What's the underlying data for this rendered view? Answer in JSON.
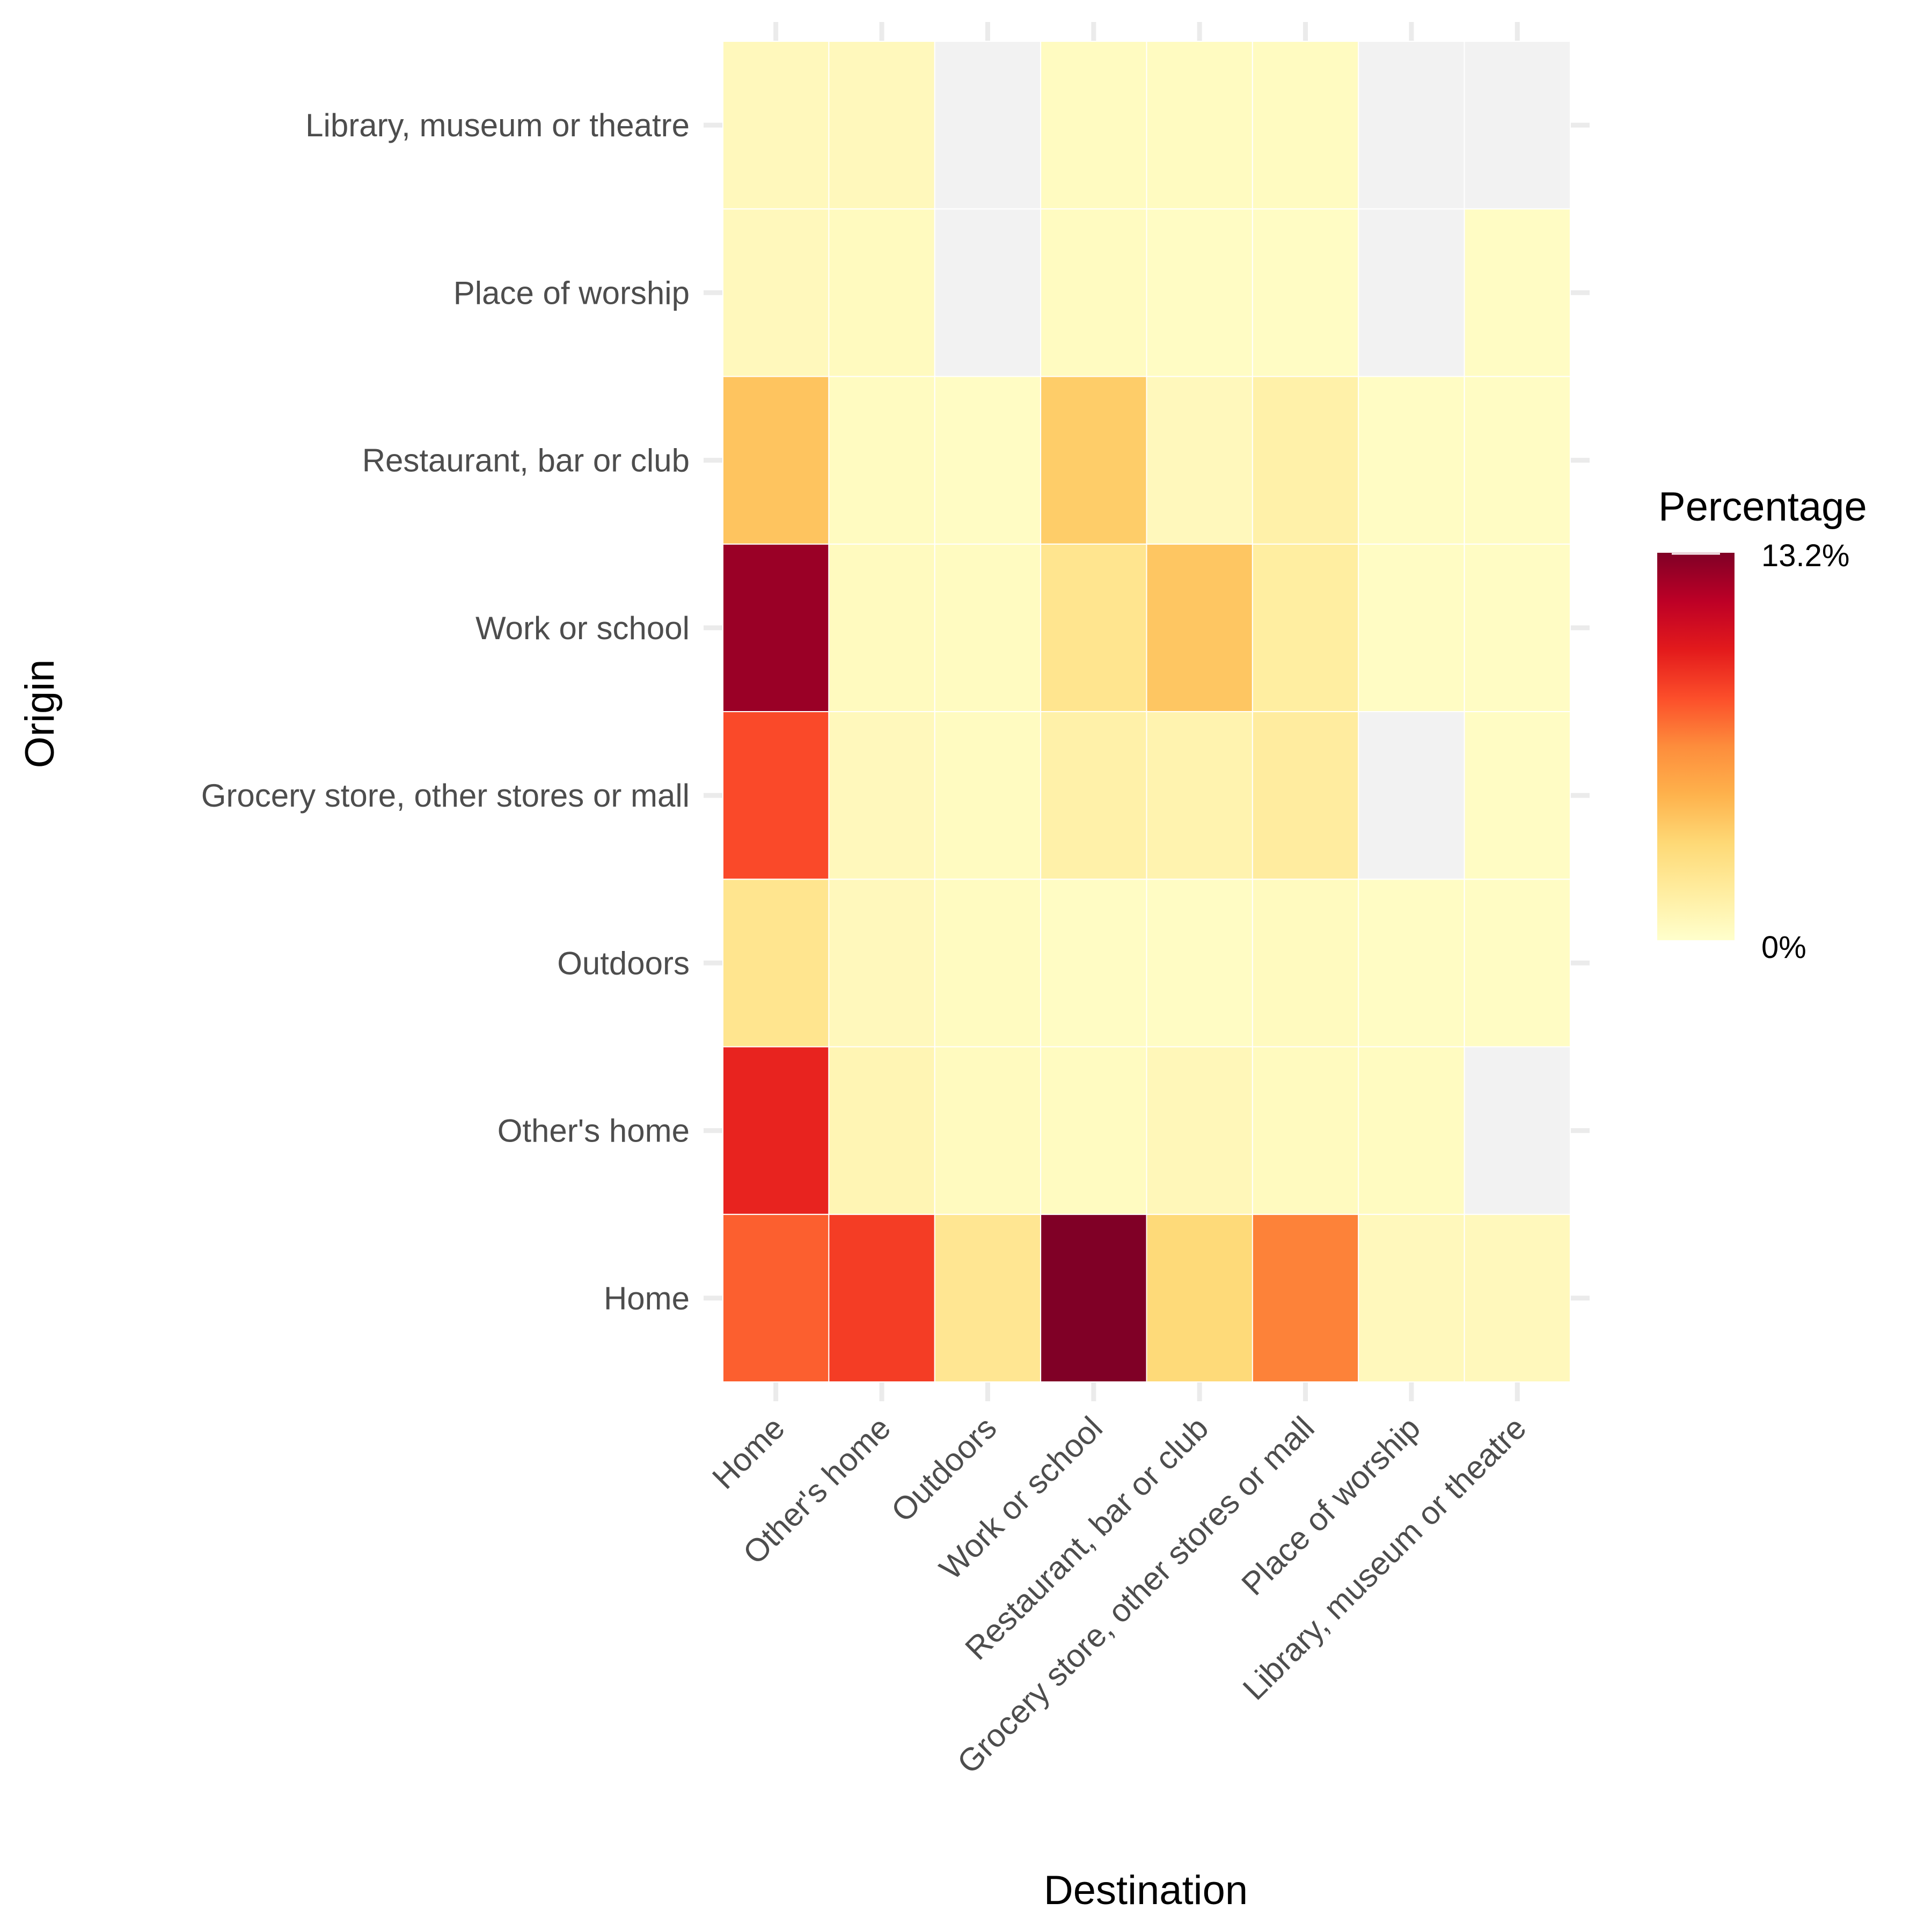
{
  "chart_data": {
    "type": "heatmap",
    "xlabel": "Destination",
    "ylabel": "Origin",
    "x_categories": [
      "Home",
      "Other's home",
      "Outdoors",
      "Work or school",
      "Restaurant, bar or club",
      "Grocery store, other stores or mall",
      "Place of worship",
      "Library, museum or theatre"
    ],
    "y_categories": [
      "Home",
      "Other's home",
      "Outdoors",
      "Grocery store, other stores or mall",
      "Work or school",
      "Restaurant, bar or club",
      "Place of worship",
      "Library, museum or theatre"
    ],
    "values": [
      [
        7.8,
        8.8,
        2.2,
        13.2,
        3.2,
        6.9,
        0.6,
        0.6
      ],
      [
        9.6,
        0.9,
        0.5,
        0.4,
        0.7,
        0.5,
        0.4,
        null
      ],
      [
        2.3,
        0.6,
        0.4,
        0.3,
        0.3,
        0.5,
        0.3,
        0.3
      ],
      [
        8.4,
        0.6,
        0.4,
        1.3,
        1.1,
        1.7,
        null,
        0.3
      ],
      [
        12.5,
        0.5,
        0.4,
        2.3,
        4.1,
        1.6,
        0.3,
        0.3
      ],
      [
        4.2,
        0.4,
        0.3,
        3.8,
        0.6,
        1.3,
        0.3,
        0.3
      ],
      [
        0.6,
        0.5,
        null,
        0.4,
        0.3,
        0.3,
        null,
        0.3
      ],
      [
        0.6,
        0.6,
        null,
        0.4,
        0.4,
        0.4,
        null,
        null
      ]
    ],
    "missing_color": "#f2f2f2",
    "colorscale": [
      "#ffffcc",
      "#ffeda0",
      "#fed976",
      "#feb24c",
      "#fd8d3c",
      "#fc4e2a",
      "#e31a1c",
      "#bd0026",
      "#800026"
    ],
    "value_range": [
      0,
      13.2
    ],
    "legend": {
      "title": "Percentage",
      "max_label": "13.2%",
      "min_label": "0%",
      "placement": "right"
    }
  }
}
